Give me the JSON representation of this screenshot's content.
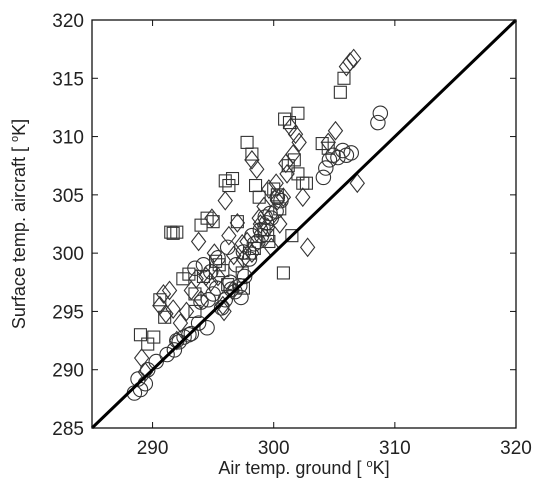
{
  "chart_data": {
    "type": "scatter",
    "title": "",
    "xlabel": "Air temp. ground [ °K]",
    "ylabel": "Surface temp. aircraft [ °K]",
    "xlabel_parts": {
      "pre": "Air temp. ground [ ",
      "sup": "o",
      "post": "K]"
    },
    "ylabel_parts": {
      "pre": "Surface temp. aircraft [ ",
      "sup": "o",
      "post": "K]"
    },
    "xlim": [
      285,
      320
    ],
    "ylim": [
      285,
      320
    ],
    "xticks": [
      285,
      290,
      300,
      310,
      320
    ],
    "yticks": [
      285,
      290,
      295,
      300,
      305,
      310,
      315,
      320
    ],
    "xtick_labels_shown": [
      "290",
      "300",
      "310",
      "320"
    ],
    "ytick_labels_shown": [
      "285",
      "290",
      "295",
      "300",
      "305",
      "310",
      "315",
      "320"
    ],
    "grid": false,
    "legend": "none",
    "reference_line": {
      "type": "identity",
      "from": [
        285,
        285
      ],
      "to": [
        320,
        320
      ]
    },
    "series": [
      {
        "marker": "circle",
        "x": [
          288.5,
          289.0,
          289.4,
          288.8,
          289.6,
          290.3,
          291.2,
          291.8,
          292.2,
          292.6,
          293.2,
          293.8,
          294.0,
          294.6,
          295.0,
          295.3,
          295.7,
          296.0,
          296.4,
          296.8,
          297.2,
          297.6,
          298.0,
          298.4,
          298.7,
          299.0,
          299.4,
          299.8,
          300.2,
          300.6,
          293.5,
          294.2,
          294.8,
          295.4,
          296.2,
          296.9,
          297.5,
          298.2,
          298.9,
          299.3,
          299.7,
          300.3,
          297.3,
          296.5,
          294.5,
          293.0,
          292.0,
          304.1,
          304.3,
          304.6,
          304.9,
          305.3,
          305.7,
          306.0,
          306.4,
          308.6,
          308.8
        ],
        "y": [
          288.0,
          288.3,
          288.8,
          289.2,
          290.0,
          290.7,
          291.3,
          291.7,
          292.4,
          292.8,
          293.1,
          294.0,
          295.8,
          296.0,
          296.5,
          297.0,
          295.3,
          296.0,
          297.5,
          296.7,
          297.2,
          298.0,
          299.5,
          300.8,
          301.0,
          301.5,
          302.6,
          303.0,
          303.6,
          304.5,
          298.7,
          299.0,
          298.4,
          299.6,
          300.5,
          299.0,
          300.1,
          301.5,
          302.0,
          303.1,
          303.4,
          304.8,
          296.2,
          296.9,
          293.6,
          293.0,
          292.5,
          306.5,
          307.3,
          308.0,
          308.4,
          308.2,
          308.8,
          308.4,
          308.6,
          311.2,
          312.0
        ]
      },
      {
        "marker": "square",
        "x": [
          289.0,
          289.6,
          290.1,
          290.6,
          291.0,
          291.5,
          291.7,
          292.0,
          292.5,
          293.0,
          293.5,
          294.0,
          294.5,
          295.0,
          295.5,
          296.0,
          296.3,
          296.6,
          297.0,
          297.4,
          297.8,
          298.2,
          298.5,
          298.8,
          299.2,
          299.6,
          300.0,
          300.5,
          300.9,
          301.3,
          301.7,
          302.0,
          302.4,
          302.7,
          295.8,
          296.2,
          295.2,
          294.2,
          293.5,
          297.5,
          298.0,
          298.4,
          299.5,
          300.8,
          301.5,
          304.0,
          304.5,
          305.5,
          305.8,
          302.0,
          301.2,
          300.3
        ],
        "y": [
          293.0,
          292.2,
          292.8,
          296.0,
          294.5,
          301.8,
          301.7,
          301.8,
          297.8,
          298.2,
          296.5,
          302.4,
          303.0,
          302.7,
          299.0,
          306.2,
          305.8,
          306.4,
          302.7,
          298.3,
          309.5,
          308.5,
          305.8,
          304.8,
          302.0,
          301.0,
          305.5,
          303.8,
          311.5,
          311.2,
          308.0,
          306.8,
          306.0,
          306.0,
          298.5,
          297.3,
          299.3,
          298.0,
          295.0,
          297.0,
          300.0,
          300.4,
          301.5,
          298.3,
          301.5,
          309.4,
          309.0,
          313.8,
          315.0,
          312.0,
          307.5,
          305.0
        ]
      },
      {
        "marker": "diamond",
        "x": [
          289.1,
          289.4,
          290.6,
          290.9,
          291.1,
          291.4,
          291.7,
          292.0,
          292.3,
          292.8,
          293.2,
          293.6,
          294.0,
          294.4,
          294.8,
          295.1,
          295.4,
          295.8,
          296.0,
          296.3,
          296.7,
          297.0,
          297.4,
          297.8,
          298.2,
          298.6,
          298.9,
          299.2,
          299.5,
          299.8,
          300.2,
          300.5,
          300.8,
          301.1,
          301.4,
          301.8,
          302.1,
          302.4,
          302.8,
          301.6,
          301.0,
          300.3,
          299.6,
          298.8,
          298.2,
          297.5,
          296.6,
          295.9,
          294.9,
          293.8,
          304.5,
          305.1,
          306.0,
          306.3,
          306.6,
          306.9
        ],
        "y": [
          291.0,
          289.8,
          295.5,
          296.5,
          294.8,
          296.8,
          295.2,
          292.5,
          294.0,
          295.0,
          296.8,
          297.8,
          296.0,
          298.0,
          297.5,
          300.0,
          298.0,
          295.5,
          304.5,
          301.5,
          299.8,
          302.6,
          300.8,
          301.0,
          308.0,
          307.2,
          302.5,
          304.0,
          302.2,
          300.5,
          306.0,
          302.5,
          304.8,
          306.8,
          310.8,
          310.2,
          309.5,
          304.8,
          300.5,
          308.5,
          307.7,
          304.5,
          305.5,
          303.0,
          300.0,
          299.5,
          296.8,
          295.0,
          303.0,
          301.0,
          309.5,
          310.5,
          316.0,
          316.4,
          316.7,
          306.0
        ]
      }
    ]
  }
}
